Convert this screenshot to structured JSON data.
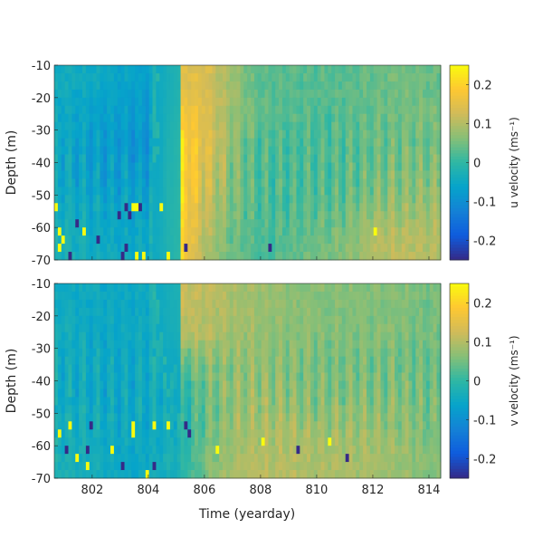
{
  "chart_data": [
    {
      "type": "heatmap",
      "panel": "top",
      "xlabel": "",
      "ylabel": "Depth (m)",
      "colorbar_label": "u velocity (ms⁻¹)",
      "xlim": [
        800.65,
        814.42
      ],
      "ylim": [
        -70,
        -10
      ],
      "clim": [
        -0.25,
        0.25
      ],
      "x_ticks": [
        802,
        804,
        806,
        808,
        810,
        812,
        814
      ],
      "y_ticks": [
        "-10",
        "-20",
        "-30",
        "-40",
        "-50",
        "-60",
        "-70"
      ],
      "colorbar_ticks": [
        "0.2",
        "0.1",
        "0",
        "-0.1",
        "-0.2"
      ],
      "grid_days": [
        801,
        802,
        803,
        804,
        805,
        806,
        807,
        808,
        809,
        810,
        811,
        812,
        813,
        814
      ],
      "grid_depths": [
        -15,
        -25,
        -35,
        -45,
        -55,
        -65
      ],
      "values_approx": [
        [
          -0.04,
          -0.05,
          -0.06,
          -0.07,
          0.15,
          0.14,
          0.08,
          0.03,
          0.03,
          0.03,
          0.03,
          0.04,
          0.05,
          0.04
        ],
        [
          -0.05,
          -0.06,
          -0.07,
          -0.08,
          0.18,
          0.15,
          0.08,
          0.03,
          0.03,
          0.02,
          0.03,
          0.04,
          0.05,
          0.05
        ],
        [
          -0.05,
          -0.07,
          -0.08,
          -0.1,
          0.22,
          0.15,
          0.07,
          0.02,
          0.02,
          0.02,
          0.03,
          0.04,
          0.05,
          0.05
        ],
        [
          -0.05,
          -0.07,
          -0.07,
          -0.07,
          0.22,
          0.14,
          0.06,
          0.02,
          0.02,
          0.02,
          0.03,
          0.05,
          0.06,
          0.06
        ],
        [
          -0.04,
          -0.05,
          -0.06,
          -0.06,
          0.22,
          0.12,
          0.05,
          0.02,
          0.02,
          0.03,
          0.04,
          0.07,
          0.08,
          0.08
        ],
        [
          -0.03,
          -0.04,
          -0.05,
          -0.05,
          0.22,
          0.1,
          0.04,
          0.02,
          0.03,
          0.05,
          0.06,
          0.1,
          0.11,
          0.1
        ]
      ]
    },
    {
      "type": "heatmap",
      "panel": "bottom",
      "xlabel": "Time (yearday)",
      "ylabel": "Depth (m)",
      "colorbar_label": "v velocity (ms⁻¹)",
      "xlim": [
        800.65,
        814.42
      ],
      "ylim": [
        -70,
        -10
      ],
      "clim": [
        -0.25,
        0.25
      ],
      "x_ticks": [
        802,
        804,
        806,
        808,
        810,
        812,
        814
      ],
      "x_tick_labels": [
        "802",
        "804",
        "806",
        "808",
        "810",
        "812",
        "814"
      ],
      "y_ticks": [
        "-10",
        "-20",
        "-30",
        "-40",
        "-50",
        "-60",
        "-70"
      ],
      "colorbar_ticks": [
        "0.2",
        "0.1",
        "0",
        "-0.1",
        "-0.2"
      ],
      "grid_days": [
        801,
        802,
        803,
        804,
        805,
        806,
        807,
        808,
        809,
        810,
        811,
        812,
        813,
        814
      ],
      "grid_depths": [
        -15,
        -25,
        -35,
        -45,
        -55,
        -65
      ],
      "values_approx": [
        [
          -0.04,
          -0.05,
          -0.05,
          -0.05,
          0.12,
          0.11,
          0.09,
          0.08,
          0.07,
          0.06,
          0.06,
          0.06,
          0.06,
          0.05
        ],
        [
          -0.04,
          -0.05,
          -0.05,
          -0.05,
          0.1,
          0.1,
          0.09,
          0.08,
          0.07,
          0.06,
          0.06,
          0.06,
          0.06,
          0.05
        ],
        [
          -0.04,
          -0.05,
          -0.05,
          -0.05,
          0.02,
          0.06,
          0.07,
          0.07,
          0.06,
          0.05,
          0.05,
          0.05,
          0.05,
          0.04
        ],
        [
          -0.04,
          -0.05,
          -0.05,
          -0.05,
          -0.02,
          0.04,
          0.07,
          0.08,
          0.07,
          0.06,
          0.06,
          0.06,
          0.06,
          0.05
        ],
        [
          -0.03,
          -0.04,
          -0.05,
          -0.05,
          -0.03,
          0.04,
          0.08,
          0.09,
          0.09,
          0.08,
          0.08,
          0.08,
          0.07,
          0.05
        ],
        [
          -0.03,
          -0.04,
          -0.05,
          -0.05,
          -0.03,
          0.05,
          0.09,
          0.1,
          0.1,
          0.09,
          0.09,
          0.09,
          0.08,
          0.06
        ]
      ]
    }
  ],
  "colors": {
    "colormap": [
      "#352A87",
      "#0F5CDD",
      "#1481D6",
      "#06A4CA",
      "#2EB7A4",
      "#87BF77",
      "#D1BB59",
      "#FEC832",
      "#F9FB0E"
    ],
    "axis": "#262626"
  }
}
